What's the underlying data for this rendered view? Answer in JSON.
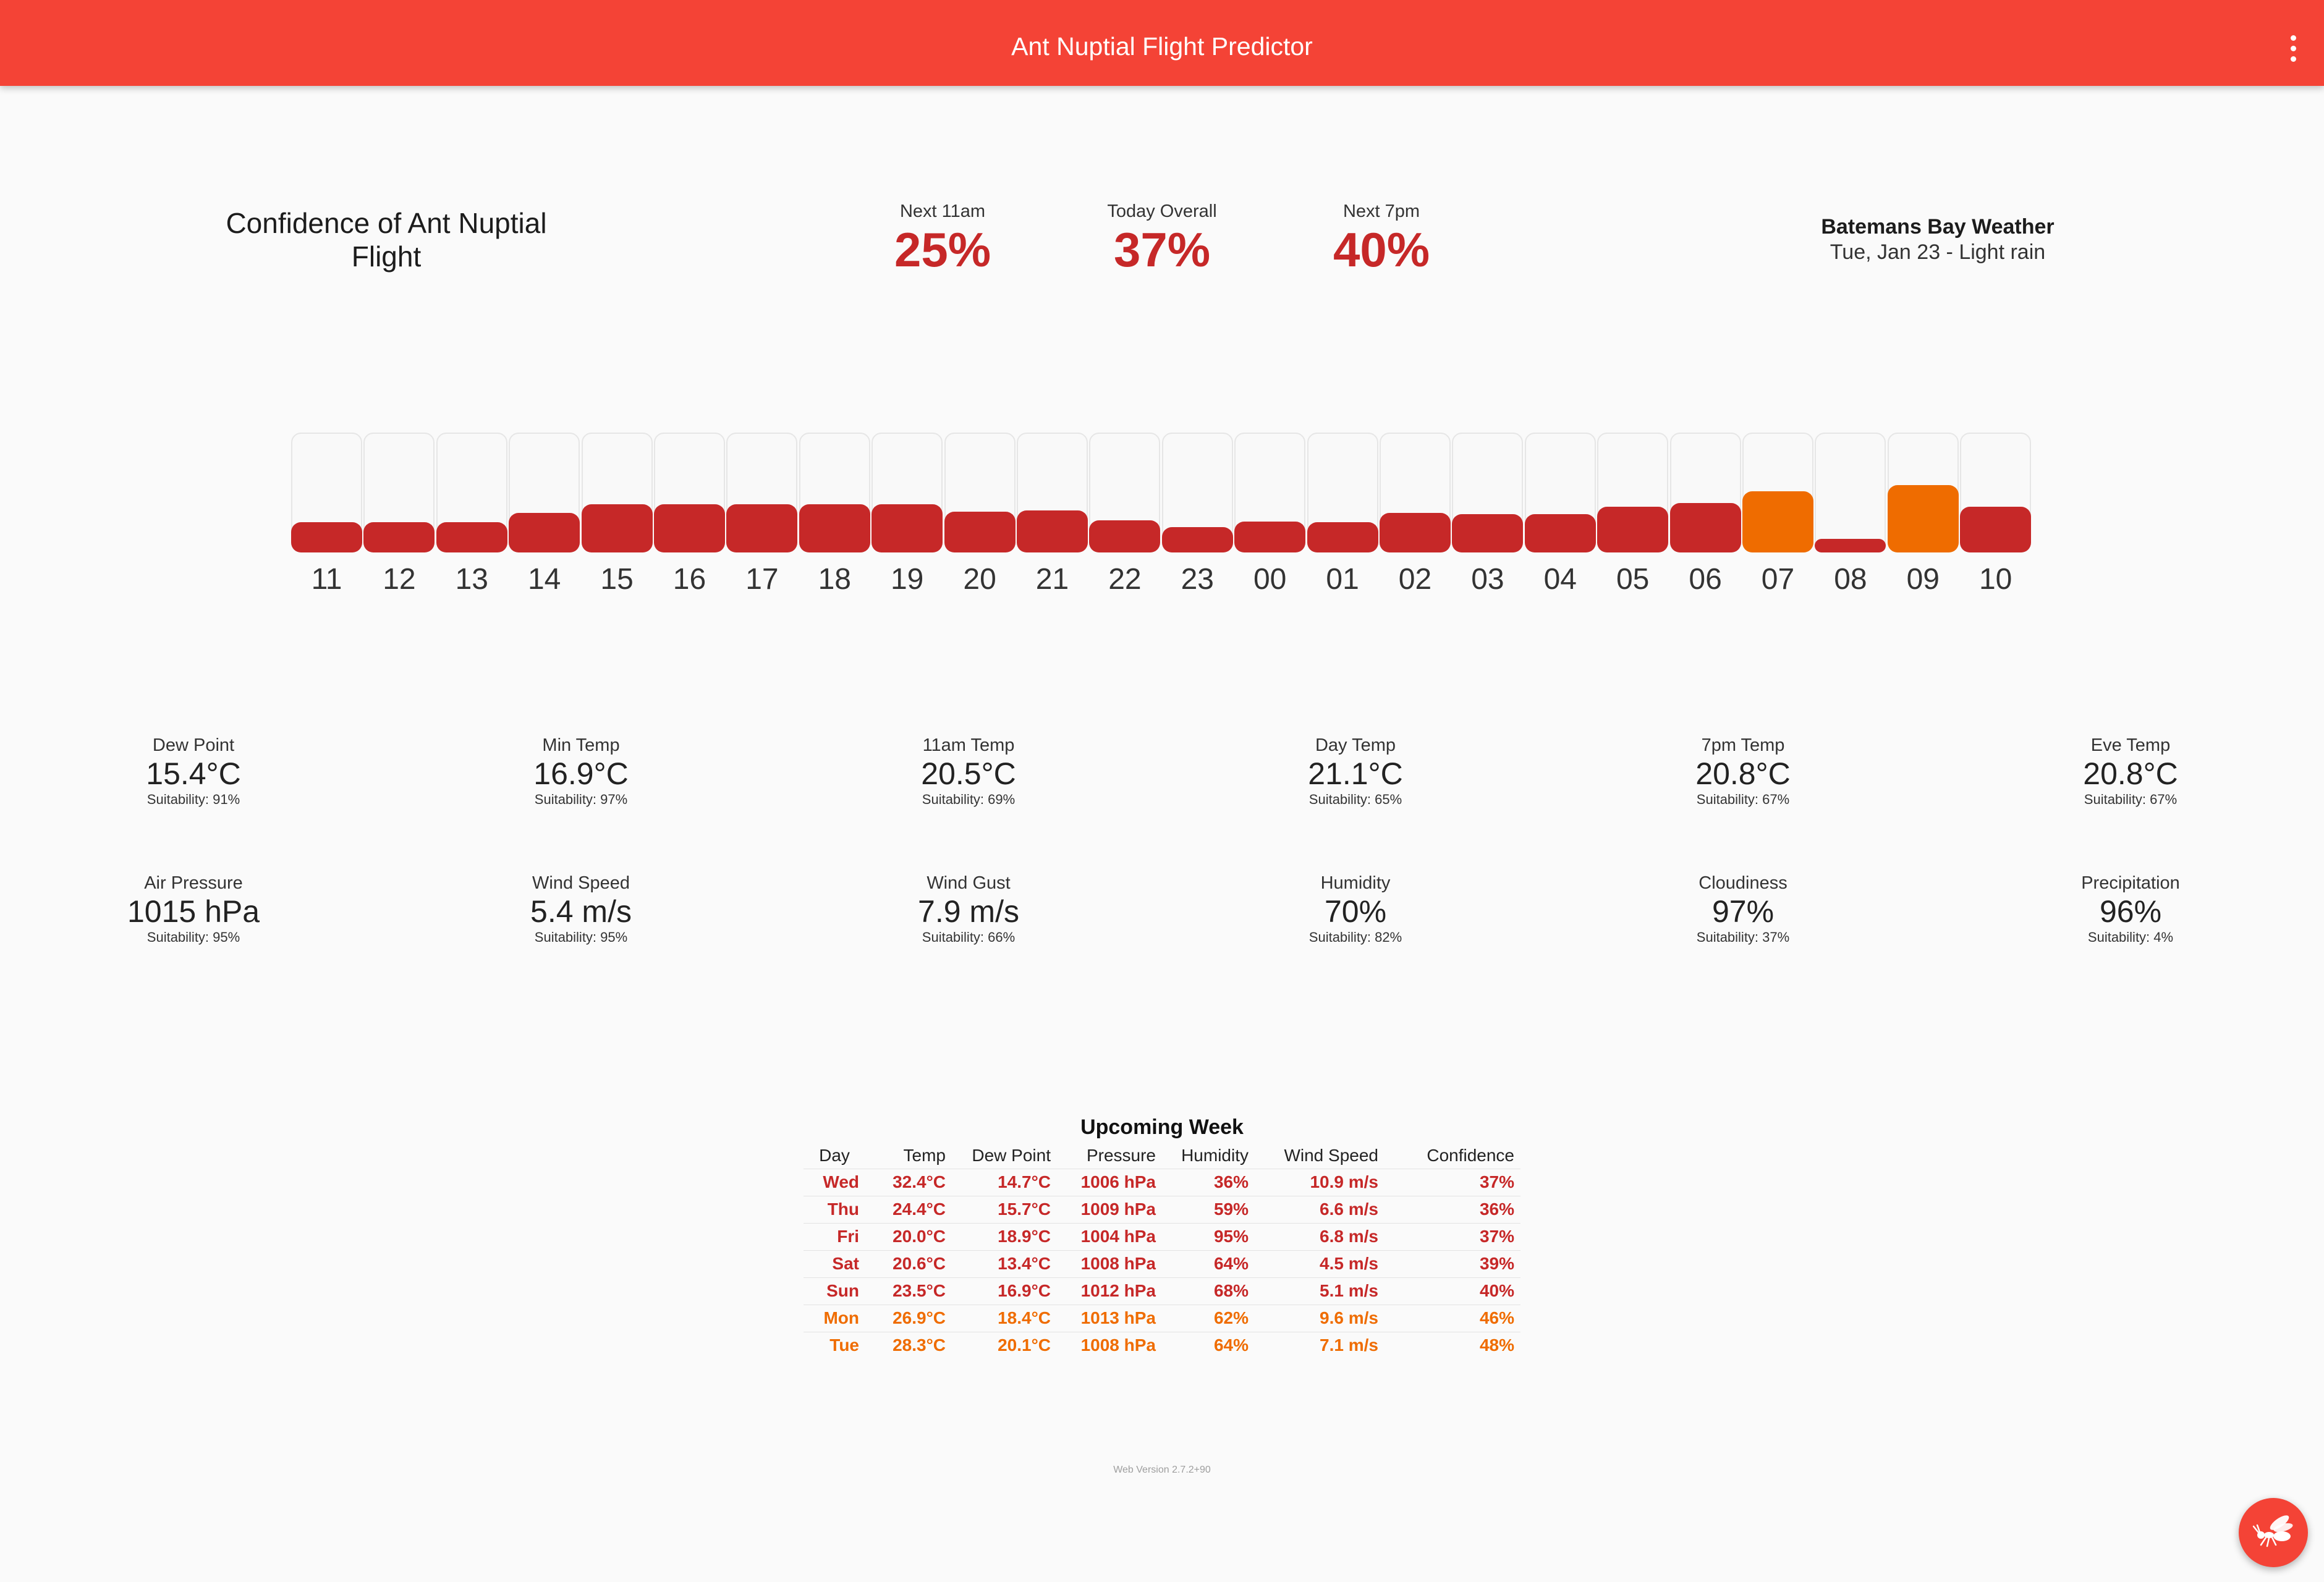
{
  "appbar": {
    "title": "Ant Nuptial Flight Predictor",
    "menu_icon": "more-vert-icon"
  },
  "confidence_label": "Confidence of Ant Nuptial Flight",
  "metrics": [
    {
      "label": "Next 11am",
      "value": "25%"
    },
    {
      "label": "Today Overall",
      "value": "37%"
    },
    {
      "label": "Next 7pm",
      "value": "40%"
    }
  ],
  "location": {
    "name": "Batemans Bay Weather",
    "subtitle": "Tue, Jan 23 - Light rain"
  },
  "colors": {
    "primary": "#f44336",
    "low": "#c62828",
    "medium": "#ef6c00"
  },
  "hourly": [
    {
      "hour": "11",
      "level": 0.25,
      "tone": "low"
    },
    {
      "hour": "12",
      "level": 0.25,
      "tone": "low"
    },
    {
      "hour": "13",
      "level": 0.25,
      "tone": "low"
    },
    {
      "hour": "14",
      "level": 0.33,
      "tone": "low"
    },
    {
      "hour": "15",
      "level": 0.4,
      "tone": "low"
    },
    {
      "hour": "16",
      "level": 0.4,
      "tone": "low"
    },
    {
      "hour": "17",
      "level": 0.4,
      "tone": "low"
    },
    {
      "hour": "18",
      "level": 0.4,
      "tone": "low"
    },
    {
      "hour": "19",
      "level": 0.4,
      "tone": "low"
    },
    {
      "hour": "20",
      "level": 0.34,
      "tone": "low"
    },
    {
      "hour": "21",
      "level": 0.35,
      "tone": "low"
    },
    {
      "hour": "22",
      "level": 0.27,
      "tone": "low"
    },
    {
      "hour": "23",
      "level": 0.21,
      "tone": "low"
    },
    {
      "hour": "00",
      "level": 0.26,
      "tone": "low"
    },
    {
      "hour": "01",
      "level": 0.25,
      "tone": "low"
    },
    {
      "hour": "02",
      "level": 0.33,
      "tone": "low"
    },
    {
      "hour": "03",
      "level": 0.32,
      "tone": "low"
    },
    {
      "hour": "04",
      "level": 0.32,
      "tone": "low"
    },
    {
      "hour": "05",
      "level": 0.38,
      "tone": "low"
    },
    {
      "hour": "06",
      "level": 0.41,
      "tone": "low"
    },
    {
      "hour": "07",
      "level": 0.51,
      "tone": "medium"
    },
    {
      "hour": "08",
      "level": 0.1,
      "tone": "low"
    },
    {
      "hour": "09",
      "level": 0.56,
      "tone": "medium"
    },
    {
      "hour": "10",
      "level": 0.38,
      "tone": "low"
    }
  ],
  "stats_row1": [
    {
      "label": "Dew Point",
      "value": "15.4°C",
      "suitability": "Suitability: 91%"
    },
    {
      "label": "Min Temp",
      "value": "16.9°C",
      "suitability": "Suitability: 97%"
    },
    {
      "label": "11am Temp",
      "value": "20.5°C",
      "suitability": "Suitability: 69%"
    },
    {
      "label": "Day Temp",
      "value": "21.1°C",
      "suitability": "Suitability: 65%"
    },
    {
      "label": "7pm Temp",
      "value": "20.8°C",
      "suitability": "Suitability: 67%"
    },
    {
      "label": "Eve Temp",
      "value": "20.8°C",
      "suitability": "Suitability: 67%"
    }
  ],
  "stats_row2": [
    {
      "label": "Air Pressure",
      "value": "1015 hPa",
      "suitability": "Suitability: 95%"
    },
    {
      "label": "Wind Speed",
      "value": "5.4 m/s",
      "suitability": "Suitability: 95%"
    },
    {
      "label": "Wind Gust",
      "value": "7.9 m/s",
      "suitability": "Suitability: 66%"
    },
    {
      "label": "Humidity",
      "value": "70%",
      "suitability": "Suitability: 82%"
    },
    {
      "label": "Cloudiness",
      "value": "97%",
      "suitability": "Suitability: 37%"
    },
    {
      "label": "Precipitation",
      "value": "96%",
      "suitability": "Suitability: 4%"
    }
  ],
  "week": {
    "title": "Upcoming Week",
    "headers": [
      "Day",
      "Temp",
      "Dew Point",
      "Pressure",
      "Humidity",
      "Wind Speed",
      "Confidence"
    ],
    "rows": [
      {
        "tone": "low",
        "cells": [
          "Wed",
          "32.4°C",
          "14.7°C",
          "1006 hPa",
          "36%",
          "10.9 m/s",
          "37%"
        ]
      },
      {
        "tone": "low",
        "cells": [
          "Thu",
          "24.4°C",
          "15.7°C",
          "1009 hPa",
          "59%",
          "6.6 m/s",
          "36%"
        ]
      },
      {
        "tone": "low",
        "cells": [
          "Fri",
          "20.0°C",
          "18.9°C",
          "1004 hPa",
          "95%",
          "6.8 m/s",
          "37%"
        ]
      },
      {
        "tone": "low",
        "cells": [
          "Sat",
          "20.6°C",
          "13.4°C",
          "1008 hPa",
          "64%",
          "4.5 m/s",
          "39%"
        ]
      },
      {
        "tone": "low",
        "cells": [
          "Sun",
          "23.5°C",
          "16.9°C",
          "1012 hPa",
          "68%",
          "5.1 m/s",
          "40%"
        ]
      },
      {
        "tone": "medium",
        "cells": [
          "Mon",
          "26.9°C",
          "18.4°C",
          "1013 hPa",
          "62%",
          "9.6 m/s",
          "46%"
        ]
      },
      {
        "tone": "medium",
        "cells": [
          "Tue",
          "28.3°C",
          "20.1°C",
          "1008 hPa",
          "64%",
          "7.1 m/s",
          "48%"
        ]
      }
    ]
  },
  "version": "Web Version 2.7.2+90",
  "fab_icon": "flying-ant-icon"
}
